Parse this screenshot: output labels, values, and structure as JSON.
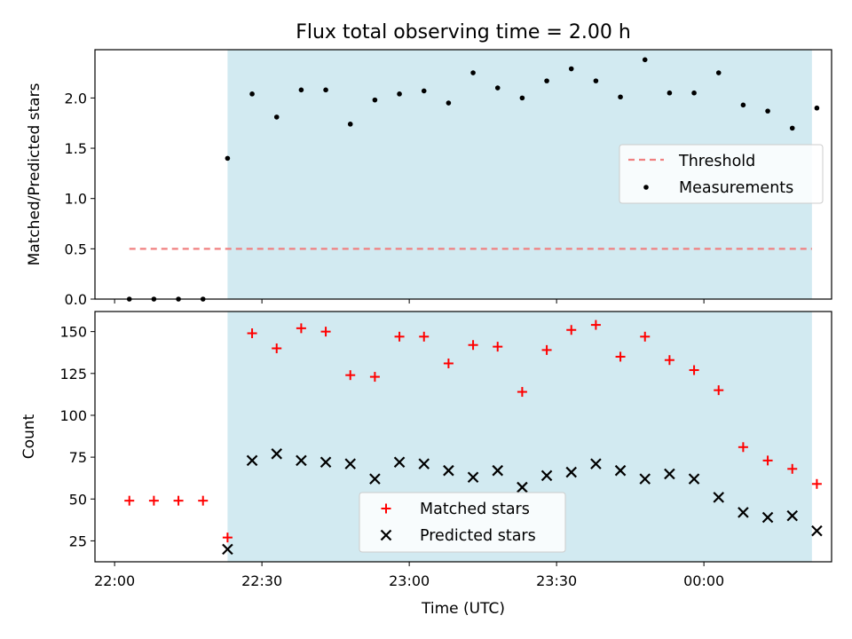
{
  "chart_data": {
    "title": "Flux total observing time = 2.00 h",
    "xlabel": "Time (UTC)",
    "x_ticks": [
      "22:00",
      "22:30",
      "23:00",
      "23:30",
      "00:00"
    ],
    "x_tick_minutes": [
      0,
      30,
      60,
      90,
      120
    ],
    "x_range_minutes": [
      -4,
      146
    ],
    "observing_window_minutes": [
      23,
      142
    ],
    "colors": {
      "shade": "#add8e6",
      "threshold": "#f08080",
      "matched": "#ff0000",
      "predicted": "#000000",
      "points": "#000000"
    },
    "panels": [
      {
        "type": "scatter",
        "ylabel": "Matched/Predicted stars",
        "ylim": [
          0,
          2.48
        ],
        "y_ticks": [
          "0.0",
          "0.5",
          "1.0",
          "1.5",
          "2.0"
        ],
        "y_tick_values": [
          0,
          0.5,
          1.0,
          1.5,
          2.0
        ],
        "threshold": {
          "name": "Threshold",
          "value": 0.5,
          "x_range": [
            3,
            142
          ]
        },
        "series": [
          {
            "name": "Measurements",
            "x": [
              3,
              8,
              13,
              18,
              23,
              28,
              33,
              38,
              43,
              48,
              53,
              58,
              63,
              68,
              73,
              78,
              83,
              88,
              93,
              98,
              103,
              108,
              113,
              118,
              123,
              128,
              133,
              138,
              143
            ],
            "y": [
              0,
              0,
              0,
              0,
              1.4,
              2.04,
              1.81,
              2.08,
              2.08,
              1.74,
              1.98,
              2.04,
              2.07,
              1.95,
              2.25,
              2.1,
              2.0,
              2.17,
              2.29,
              2.17,
              2.01,
              2.38,
              2.05,
              2.05,
              2.25,
              1.93,
              1.87,
              1.7,
              1.9
            ]
          }
        ],
        "legend": {
          "entries": [
            "Threshold",
            "Measurements"
          ],
          "placement": "right"
        }
      },
      {
        "type": "scatter",
        "ylabel": "Count",
        "ylim": [
          12.5,
          162
        ],
        "y_ticks": [
          "25",
          "50",
          "75",
          "100",
          "125",
          "150"
        ],
        "y_tick_values": [
          25,
          50,
          75,
          100,
          125,
          150
        ],
        "series": [
          {
            "name": "Matched stars",
            "marker": "plus",
            "x": [
              3,
              8,
              13,
              18,
              23,
              28,
              33,
              38,
              43,
              48,
              53,
              58,
              63,
              68,
              73,
              78,
              83,
              88,
              93,
              98,
              103,
              108,
              113,
              118,
              123,
              128,
              133,
              138,
              143
            ],
            "y": [
              49,
              49,
              49,
              49,
              27,
              149,
              140,
              152,
              150,
              124,
              123,
              147,
              147,
              131,
              142,
              141,
              114,
              139,
              151,
              154,
              135,
              147,
              133,
              127,
              115,
              81,
              73,
              68,
              59
            ]
          },
          {
            "name": "Predicted stars",
            "marker": "x",
            "x": [
              23,
              28,
              33,
              38,
              43,
              48,
              53,
              58,
              63,
              68,
              73,
              78,
              83,
              88,
              93,
              98,
              103,
              108,
              113,
              118,
              123,
              128,
              133,
              138,
              143
            ],
            "y": [
              20,
              73,
              77,
              73,
              72,
              71,
              62,
              72,
              71,
              67,
              63,
              67,
              57,
              64,
              66,
              71,
              67,
              62,
              65,
              62,
              51,
              42,
              39,
              40,
              31
            ]
          }
        ],
        "legend": {
          "entries": [
            "Matched stars",
            "Predicted stars"
          ],
          "placement": "lower center"
        }
      }
    ]
  }
}
